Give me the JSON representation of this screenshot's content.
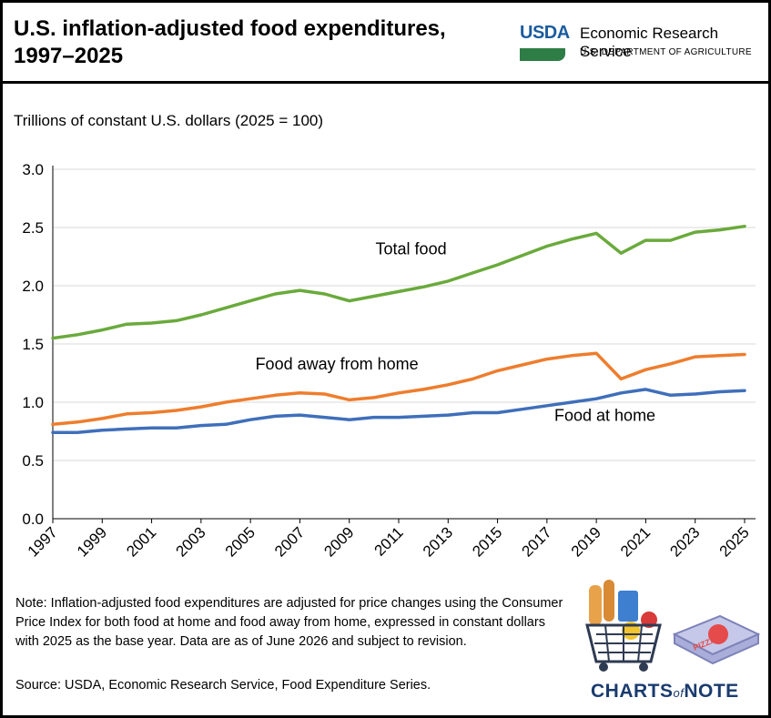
{
  "header": {
    "title_line1": "U.S. inflation-adjusted food expenditures,",
    "title_line2": "1997–2025",
    "logo_text": "USDA",
    "agency": "Economic Research Service",
    "department": "U.S. DEPARTMENT OF AGRICULTURE"
  },
  "footer": {
    "note": "Note: Inflation-adjusted food expenditures are adjusted for price changes using the Consumer Price Index for both food at home and food away from home, expressed in constant dollars with 2025 as the base year. Data are as of June 2026 and subject to revision.",
    "source": "Source: USDA, Economic Research Service, Food Expenditure Series.",
    "brand_charts": "CHARTS",
    "brand_of": "of",
    "brand_note": "NOTE",
    "illustration_pizza": "PIZZA"
  },
  "colors": {
    "total_food": "#6aaa3c",
    "away_from_home": "#ee7d2d",
    "at_home": "#3f6fba",
    "grid": "#d9d9d9"
  },
  "chart_data": {
    "type": "line",
    "ylabel": "Trillions of constant U.S. dollars (2025 = 100)",
    "ylim": [
      0,
      3.0
    ],
    "yticks": [
      "0.0",
      "0.5",
      "1.0",
      "1.5",
      "2.0",
      "2.5",
      "3.0"
    ],
    "xticks": [
      "1997",
      "1999",
      "2001",
      "2003",
      "2005",
      "2007",
      "2009",
      "2011",
      "2013",
      "2015",
      "2017",
      "2019",
      "2021",
      "2023",
      "2025"
    ],
    "x": [
      1997,
      1998,
      1999,
      2000,
      2001,
      2002,
      2003,
      2004,
      2005,
      2006,
      2007,
      2008,
      2009,
      2010,
      2011,
      2012,
      2013,
      2014,
      2015,
      2016,
      2017,
      2018,
      2019,
      2020,
      2021,
      2022,
      2023,
      2024,
      2025
    ],
    "grid": true,
    "series": [
      {
        "name": "Total food",
        "color_key": "total_food",
        "values": [
          1.55,
          1.58,
          1.62,
          1.67,
          1.68,
          1.7,
          1.75,
          1.81,
          1.87,
          1.93,
          1.96,
          1.93,
          1.87,
          1.91,
          1.95,
          1.99,
          2.04,
          2.11,
          2.18,
          2.26,
          2.34,
          2.4,
          2.45,
          2.28,
          2.39,
          2.39,
          2.46,
          2.48,
          2.51
        ]
      },
      {
        "name": "Food away from home",
        "color_key": "away_from_home",
        "values": [
          0.81,
          0.83,
          0.86,
          0.9,
          0.91,
          0.93,
          0.96,
          1.0,
          1.03,
          1.06,
          1.08,
          1.07,
          1.02,
          1.04,
          1.08,
          1.11,
          1.15,
          1.2,
          1.27,
          1.32,
          1.37,
          1.4,
          1.42,
          1.2,
          1.28,
          1.33,
          1.39,
          1.4,
          1.41
        ]
      },
      {
        "name": "Food at home",
        "color_key": "at_home",
        "values": [
          0.74,
          0.74,
          0.76,
          0.77,
          0.78,
          0.78,
          0.8,
          0.81,
          0.85,
          0.88,
          0.89,
          0.87,
          0.85,
          0.87,
          0.87,
          0.88,
          0.89,
          0.91,
          0.91,
          0.94,
          0.97,
          1.0,
          1.03,
          1.08,
          1.11,
          1.06,
          1.07,
          1.09,
          1.1
        ]
      }
    ],
    "annotations": [
      "Total food",
      "Food away from home",
      "Food at home"
    ]
  }
}
